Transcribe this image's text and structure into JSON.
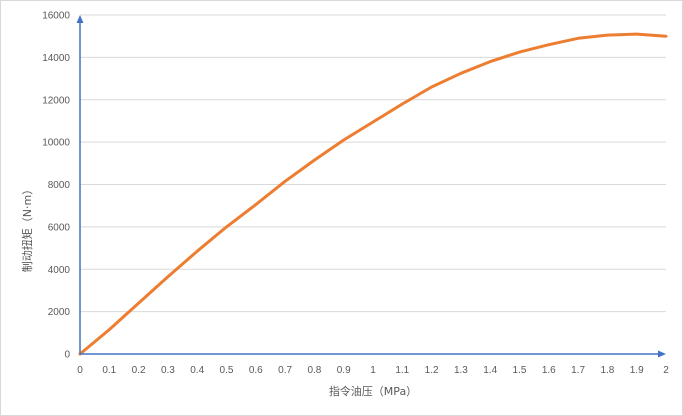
{
  "chart_data": {
    "type": "line",
    "title": "",
    "xlabel": "指令油压（MPa）",
    "ylabel": "制动扭矩（N·m）",
    "xlim": [
      0,
      2
    ],
    "ylim": [
      0,
      16000
    ],
    "x_ticks": [
      "0",
      "0.1",
      "0.2",
      "0.3",
      "0.4",
      "0.5",
      "0.6",
      "0.7",
      "0.8",
      "0.9",
      "1",
      "1.1",
      "1.2",
      "1.3",
      "1.4",
      "1.5",
      "1.6",
      "1.7",
      "1.8",
      "1.9",
      "2"
    ],
    "y_ticks": [
      "0",
      "2000",
      "4000",
      "6000",
      "8000",
      "10000",
      "12000",
      "14000",
      "16000"
    ],
    "grid": "horizontal",
    "legend": "none",
    "series": [
      {
        "color": "#ED7D31",
        "x": [
          0,
          0.1,
          0.2,
          0.3,
          0.4,
          0.5,
          0.6,
          0.7,
          0.8,
          0.9,
          1.0,
          1.1,
          1.2,
          1.3,
          1.4,
          1.5,
          1.6,
          1.7,
          1.8,
          1.9,
          2.0
        ],
        "y": [
          0,
          1150,
          2400,
          3650,
          4850,
          6000,
          7050,
          8150,
          9150,
          10100,
          10950,
          11800,
          12600,
          13250,
          13800,
          14250,
          14600,
          14900,
          15050,
          15100,
          15000
        ]
      }
    ],
    "axis_color": "#4472C4"
  }
}
